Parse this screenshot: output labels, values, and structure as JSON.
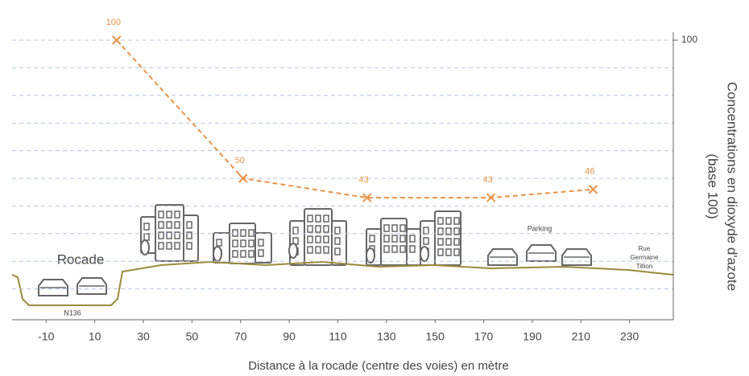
{
  "chart_data": {
    "type": "line",
    "x_label": "Distance à la rocade (centre des voies) en mètre",
    "y_label": [
      "Concentrations en dioxyde d'azote",
      "(base 100)"
    ],
    "x": [
      19,
      71,
      122,
      173,
      215
    ],
    "values": [
      100,
      50,
      43,
      43,
      46
    ],
    "color": "#e8954a",
    "xlim": [
      -24,
      248
    ],
    "xticks": [
      -10,
      10,
      30,
      50,
      70,
      90,
      110,
      130,
      150,
      170,
      190,
      210,
      230
    ],
    "ylim": [
      0,
      100
    ],
    "yticks": [
      100
    ],
    "grid": true,
    "annotations": [
      "Rocade",
      "N136",
      "Parking",
      "Rue Germaine Tillion"
    ]
  }
}
